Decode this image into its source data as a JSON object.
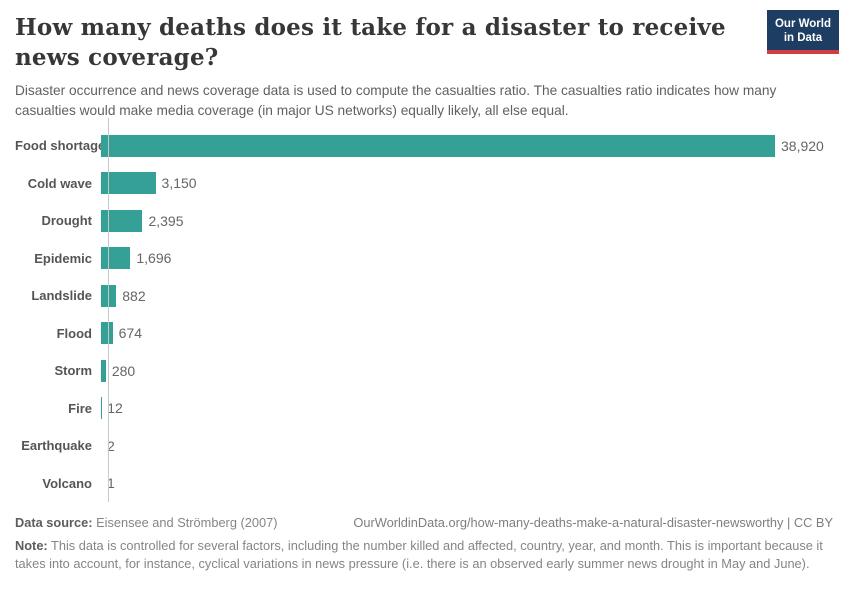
{
  "header": {
    "title": "How many deaths does it take for a disaster to receive news coverage?",
    "subtitle": "Disaster occurrence and news coverage data is used to compute the casualties ratio. The casualties ratio indicates how many casualties would make media coverage (in major US networks) equally likely, all else equal.",
    "logo": {
      "line1": "Our World",
      "line2": "in Data"
    }
  },
  "chart_data": {
    "type": "bar",
    "orientation": "horizontal",
    "categories": [
      "Food shortage",
      "Cold wave",
      "Drought",
      "Epidemic",
      "Landslide",
      "Flood",
      "Storm",
      "Fire",
      "Earthquake",
      "Volcano"
    ],
    "values": [
      38920,
      3150,
      2395,
      1696,
      882,
      674,
      280,
      12,
      2,
      1
    ],
    "value_labels": [
      "38,920",
      "3,150",
      "2,395",
      "1,696",
      "882",
      "674",
      "280",
      "12",
      "2",
      "1"
    ],
    "title": "How many deaths does it take for a disaster to receive news coverage?",
    "xlabel": "",
    "ylabel": "",
    "xlim": [
      0,
      38920
    ],
    "grid": false,
    "legend": false,
    "bar_color": "#35a096",
    "axis_color": "#c9c9c9"
  },
  "footer": {
    "datasource_label": "Data source:",
    "datasource_value": "Eisensee and Strömberg (2007)",
    "attribution": "OurWorldinData.org/how-many-deaths-make-a-natural-disaster-newsworthy | CC BY",
    "note_label": "Note:",
    "note_text": "This data is controlled for several factors, including the number killed and affected, country, year, and month. This is important because it takes into account, for instance, cyclical variations in news pressure (i.e. there is an observed early summer news drought in May and June)."
  },
  "colors": {
    "bar": "#35a096",
    "logo_background": "#1d3d63",
    "logo_red": "#cf3f42",
    "title_text": "#373737",
    "subtitle_text": "#616161",
    "category_label": "#555555",
    "value_label": "#666666",
    "footer_text": "#858585"
  }
}
